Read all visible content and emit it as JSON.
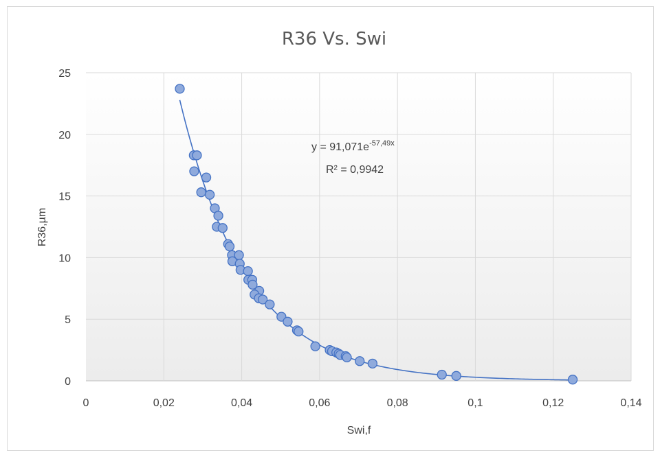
{
  "chart_data": {
    "type": "scatter",
    "title": "R36 Vs. Swi",
    "xlabel": "Swi,f",
    "ylabel": "R36,µm",
    "xlim": [
      0,
      0.14
    ],
    "ylim": [
      0,
      25
    ],
    "x_ticks": [
      0,
      0.02,
      0.04,
      0.06,
      0.08,
      0.1,
      0.12,
      0.14
    ],
    "x_tick_labels": [
      "0",
      "0,02",
      "0,04",
      "0,06",
      "0,08",
      "0,1",
      "0,12",
      "0,14"
    ],
    "y_ticks": [
      0,
      5,
      10,
      15,
      20,
      25
    ],
    "y_tick_labels": [
      "0",
      "5",
      "10",
      "15",
      "20",
      "25"
    ],
    "grid": true,
    "marker_color": "#8faadc",
    "marker_edge_color": "#4472c4",
    "trendline_color": "#4472c4",
    "points": [
      [
        0.0241,
        23.7
      ],
      [
        0.0277,
        18.3
      ],
      [
        0.0285,
        18.3
      ],
      [
        0.0278,
        17.0
      ],
      [
        0.0309,
        16.5
      ],
      [
        0.0296,
        15.3
      ],
      [
        0.0318,
        15.1
      ],
      [
        0.0331,
        14.0
      ],
      [
        0.034,
        13.4
      ],
      [
        0.0336,
        12.5
      ],
      [
        0.0351,
        12.4
      ],
      [
        0.0365,
        11.1
      ],
      [
        0.0369,
        10.9
      ],
      [
        0.0375,
        10.2
      ],
      [
        0.0393,
        10.2
      ],
      [
        0.0376,
        9.7
      ],
      [
        0.0395,
        9.5
      ],
      [
        0.0397,
        9.0
      ],
      [
        0.0416,
        8.9
      ],
      [
        0.0417,
        8.2
      ],
      [
        0.0427,
        8.2
      ],
      [
        0.0428,
        7.8
      ],
      [
        0.0445,
        7.3
      ],
      [
        0.0433,
        7.0
      ],
      [
        0.0444,
        6.7
      ],
      [
        0.0454,
        6.6
      ],
      [
        0.0472,
        6.2
      ],
      [
        0.0502,
        5.2
      ],
      [
        0.0518,
        4.8
      ],
      [
        0.0542,
        4.1
      ],
      [
        0.0546,
        4.0
      ],
      [
        0.0589,
        2.8
      ],
      [
        0.0626,
        2.5
      ],
      [
        0.0632,
        2.4
      ],
      [
        0.0643,
        2.3
      ],
      [
        0.0649,
        2.2
      ],
      [
        0.0653,
        2.1
      ],
      [
        0.0667,
        2.0
      ],
      [
        0.067,
        1.9
      ],
      [
        0.0703,
        1.6
      ],
      [
        0.0736,
        1.4
      ],
      [
        0.0914,
        0.5
      ],
      [
        0.0951,
        0.4
      ],
      [
        0.125,
        0.1
      ]
    ],
    "trendline": {
      "type": "exponential",
      "a": 91.071,
      "b": -57.49,
      "x_range": [
        0.0241,
        0.125
      ]
    },
    "annotation": {
      "equation_base": "y = 91,071e",
      "equation_exponent": "-57,49x",
      "r2": "R² = 0,9942"
    }
  }
}
